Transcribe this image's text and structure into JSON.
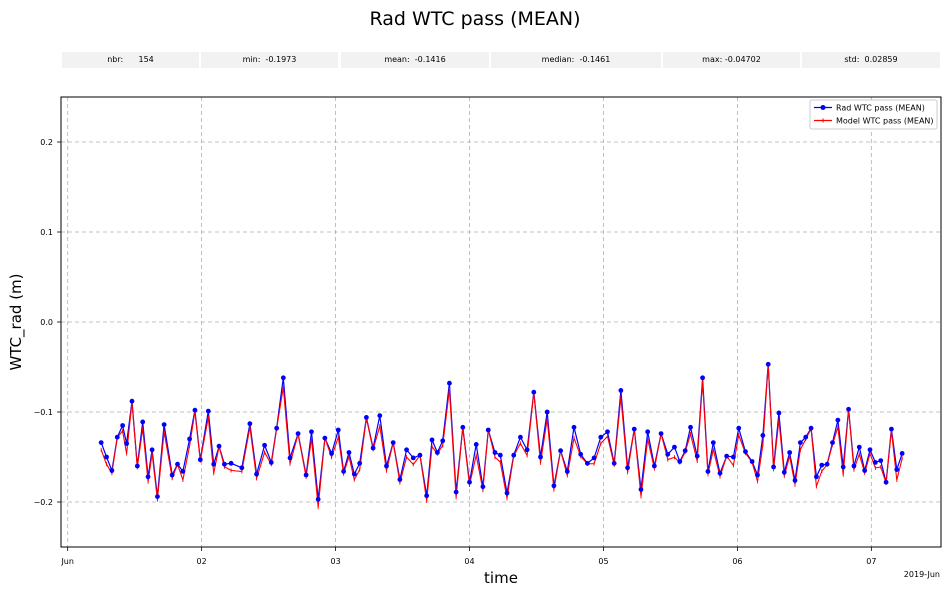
{
  "title": "Rad WTC pass (MEAN)",
  "stats": [
    {
      "label": "nbr:",
      "value": "154"
    },
    {
      "label": "min:",
      "value": "-0.1973"
    },
    {
      "label": "mean:",
      "value": "-0.1416"
    },
    {
      "label": "median:",
      "value": "-0.1461"
    },
    {
      "label": "max:",
      "value": "-0.04702"
    },
    {
      "label": "std:",
      "value": "0.02859"
    }
  ],
  "chart_data": {
    "type": "line",
    "title": "Rad WTC pass (MEAN)",
    "xlabel": "time",
    "ylabel": "WTC_rad (m)",
    "x_offset_label": "2019-Jun",
    "x_tick_labels": [
      "Jun",
      "02",
      "03",
      "04",
      "05",
      "06",
      "07"
    ],
    "x_tick_days": [
      1,
      2,
      3,
      4,
      5,
      6,
      7
    ],
    "xlim": [
      0.95,
      7.52
    ],
    "y_ticks": [
      -0.2,
      -0.1,
      0.0,
      0.1,
      0.2
    ],
    "y_tick_labels": [
      "−0.2",
      "−0.1",
      "0.0",
      "0.1",
      "0.2"
    ],
    "ylim": [
      -0.25,
      0.25
    ],
    "grid": true,
    "legend_position": "top-right",
    "series": [
      {
        "name": "Rad WTC pass (MEAN)",
        "color": "#0000ff",
        "marker": "circle",
        "x": [
          1.25,
          1.29,
          1.33,
          1.37,
          1.41,
          1.44,
          1.48,
          1.52,
          1.56,
          1.6,
          1.63,
          1.67,
          1.72,
          1.78,
          1.82,
          1.86,
          1.91,
          1.95,
          1.99,
          2.05,
          2.09,
          2.13,
          2.17,
          2.22,
          2.3,
          2.36,
          2.41,
          2.47,
          2.52,
          2.56,
          2.61,
          2.66,
          2.72,
          2.78,
          2.82,
          2.87,
          2.92,
          2.97,
          3.02,
          3.06,
          3.1,
          3.14,
          3.18,
          3.23,
          3.28,
          3.33,
          3.38,
          3.43,
          3.48,
          3.53,
          3.58,
          3.63,
          3.68,
          3.72,
          3.76,
          3.8,
          3.85,
          3.9,
          3.95,
          4.0,
          4.05,
          4.1,
          4.14,
          4.19,
          4.23,
          4.28,
          4.33,
          4.38,
          4.43,
          4.48,
          4.53,
          4.58,
          4.63,
          4.68,
          4.73,
          4.78,
          4.83,
          4.88,
          4.93,
          4.98,
          5.03,
          5.08,
          5.13,
          5.18,
          5.23,
          5.28,
          5.33,
          5.38,
          5.43,
          5.48,
          5.53,
          5.57,
          5.61,
          5.65,
          5.7,
          5.74,
          5.78,
          5.82,
          5.87,
          5.92,
          5.97,
          6.01,
          6.06,
          6.11,
          6.15,
          6.19,
          6.23,
          6.27,
          6.31,
          6.35,
          6.39,
          6.43,
          6.47,
          6.51,
          6.55,
          6.59,
          6.63,
          6.67,
          6.71,
          6.75,
          6.79,
          6.83,
          6.87,
          6.91,
          6.95,
          6.99,
          7.03,
          7.07,
          7.11,
          7.15,
          7.19,
          7.23
        ],
        "y": [
          -0.134,
          -0.15,
          -0.165,
          -0.128,
          -0.115,
          -0.135,
          -0.088,
          -0.16,
          -0.111,
          -0.172,
          -0.142,
          -0.194,
          -0.114,
          -0.17,
          -0.158,
          -0.166,
          -0.13,
          -0.098,
          -0.153,
          -0.099,
          -0.158,
          -0.138,
          -0.158,
          -0.157,
          -0.162,
          -0.113,
          -0.169,
          -0.137,
          -0.156,
          -0.118,
          -0.062,
          -0.151,
          -0.124,
          -0.17,
          -0.122,
          -0.197,
          -0.129,
          -0.146,
          -0.12,
          -0.166,
          -0.145,
          -0.169,
          -0.157,
          -0.106,
          -0.14,
          -0.104,
          -0.16,
          -0.134,
          -0.175,
          -0.142,
          -0.151,
          -0.148,
          -0.193,
          -0.131,
          -0.145,
          -0.132,
          -0.068,
          -0.189,
          -0.117,
          -0.178,
          -0.136,
          -0.183,
          -0.12,
          -0.145,
          -0.148,
          -0.19,
          -0.148,
          -0.128,
          -0.142,
          -0.078,
          -0.15,
          -0.1,
          -0.182,
          -0.143,
          -0.166,
          -0.117,
          -0.147,
          -0.157,
          -0.151,
          -0.128,
          -0.122,
          -0.157,
          -0.076,
          -0.162,
          -0.119,
          -0.186,
          -0.122,
          -0.16,
          -0.124,
          -0.147,
          -0.139,
          -0.155,
          -0.143,
          -0.117,
          -0.149,
          -0.062,
          -0.166,
          -0.134,
          -0.168,
          -0.149,
          -0.15,
          -0.118,
          -0.144,
          -0.155,
          -0.17,
          -0.126,
          -0.047,
          -0.161,
          -0.101,
          -0.167,
          -0.145,
          -0.176,
          -0.134,
          -0.128,
          -0.118,
          -0.172,
          -0.159,
          -0.158,
          -0.134,
          -0.109,
          -0.161,
          -0.097,
          -0.16,
          -0.139,
          -0.165,
          -0.142,
          -0.156,
          -0.154,
          -0.178,
          -0.119,
          -0.164,
          -0.146
        ],
        "note_end": ""
      },
      {
        "name": "Model WTC pass (MEAN)",
        "color": "#ff0000",
        "marker": "plus"
      }
    ]
  }
}
